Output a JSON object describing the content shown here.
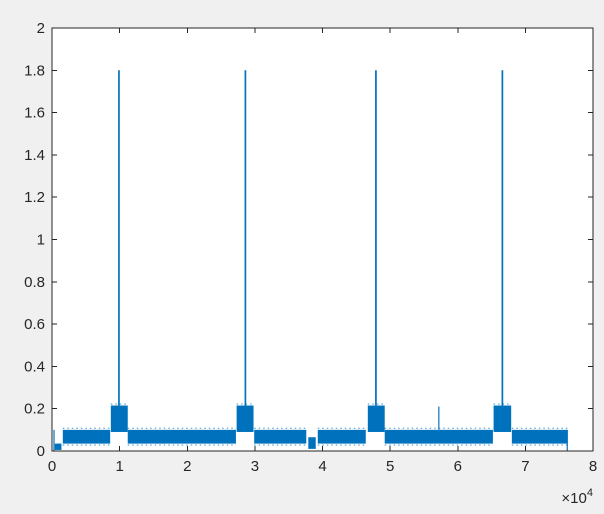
{
  "figure": {
    "background_color": "#f0f0f0",
    "plot_background_color": "#ffffff",
    "axis_color": "#262626",
    "tick_label_color": "#3b3b3b"
  },
  "chart_data": {
    "type": "line",
    "title": "",
    "xlabel": "",
    "ylabel": "",
    "legend": null,
    "grid": false,
    "xlim": [
      0,
      8
    ],
    "ylim": [
      0,
      2
    ],
    "x_axis_exponent_label": "×10",
    "x_axis_exponent_power": "4",
    "x_ticks": [
      "0",
      "1",
      "2",
      "3",
      "4",
      "5",
      "6",
      "7",
      "8"
    ],
    "x_tick_values": [
      0,
      1,
      2,
      3,
      4,
      5,
      6,
      7,
      8
    ],
    "y_ticks": [
      "0",
      "0.2",
      "0.4",
      "0.6",
      "0.8",
      "1",
      "1.2",
      "1.4",
      "1.6",
      "1.8",
      "2"
    ],
    "y_tick_values": [
      0,
      0.2,
      0.4,
      0.6,
      0.8,
      1,
      1.2,
      1.4,
      1.6,
      1.8,
      2
    ],
    "series_color": "#0072BD",
    "fringe_color": "#6fb1dd",
    "signal": {
      "note": "x in units of 1e4; envelope fills of a dense oscillating signal",
      "band": {
        "y_min": 0.035,
        "y_max": 0.1,
        "segments": [
          [
            0.16,
            0.86
          ],
          [
            1.12,
            2.72
          ],
          [
            2.99,
            3.76
          ],
          [
            3.93,
            4.64
          ],
          [
            4.92,
            6.52
          ],
          [
            6.8,
            7.62
          ]
        ]
      },
      "bursts": [
        {
          "x0": 0.87,
          "x1": 1.12,
          "y_min": 0.09,
          "y_max": 0.215,
          "spike_x": 0.99,
          "spike_peak": 1.8
        },
        {
          "x0": 2.73,
          "x1": 2.98,
          "y_min": 0.09,
          "y_max": 0.215,
          "spike_x": 2.86,
          "spike_peak": 1.8
        },
        {
          "x0": 4.67,
          "x1": 4.92,
          "y_min": 0.09,
          "y_max": 0.215,
          "spike_x": 4.79,
          "spike_peak": 1.8
        },
        {
          "x0": 6.53,
          "x1": 6.79,
          "y_min": 0.09,
          "y_max": 0.215,
          "spike_x": 6.66,
          "spike_peak": 1.8
        }
      ],
      "low_blocks": [
        {
          "x0": 0.04,
          "x1": 0.14,
          "y_min": 0.005,
          "y_max": 0.035
        },
        {
          "x0": 3.79,
          "x1": 3.9,
          "y_min": 0.01,
          "y_max": 0.065
        }
      ],
      "vlines": [
        {
          "x": 0.03,
          "y0": 0.0,
          "y1": 0.1
        },
        {
          "x": 5.72,
          "y0": 0.1,
          "y1": 0.21
        },
        {
          "x": 7.62,
          "y0": 0.0,
          "y1": 0.1
        }
      ]
    }
  }
}
